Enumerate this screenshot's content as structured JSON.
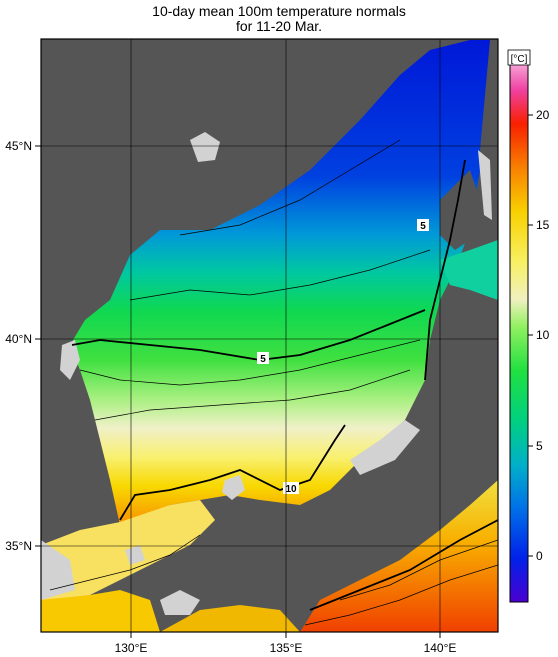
{
  "title_line1": "10-day mean 100m temperature normals",
  "title_line2": "for 11-20 Mar.",
  "colorbar": {
    "unit_label": "[°C]",
    "ticks": [
      "0",
      "5",
      "10",
      "15",
      "20"
    ],
    "range": [
      -2,
      22
    ]
  },
  "axes": {
    "x_ticks": [
      "130°E",
      "135°E",
      "140°E"
    ],
    "y_ticks": [
      "35°N",
      "40°N",
      "45°N"
    ],
    "lon_range": [
      127,
      142
    ],
    "lat_range": [
      33,
      47.6
    ]
  },
  "contour_labels": [
    "5",
    "5",
    "10"
  ],
  "colors": {
    "land": "#555555",
    "coast_shelf": "#d2d2d2",
    "frame": "#000000"
  }
}
